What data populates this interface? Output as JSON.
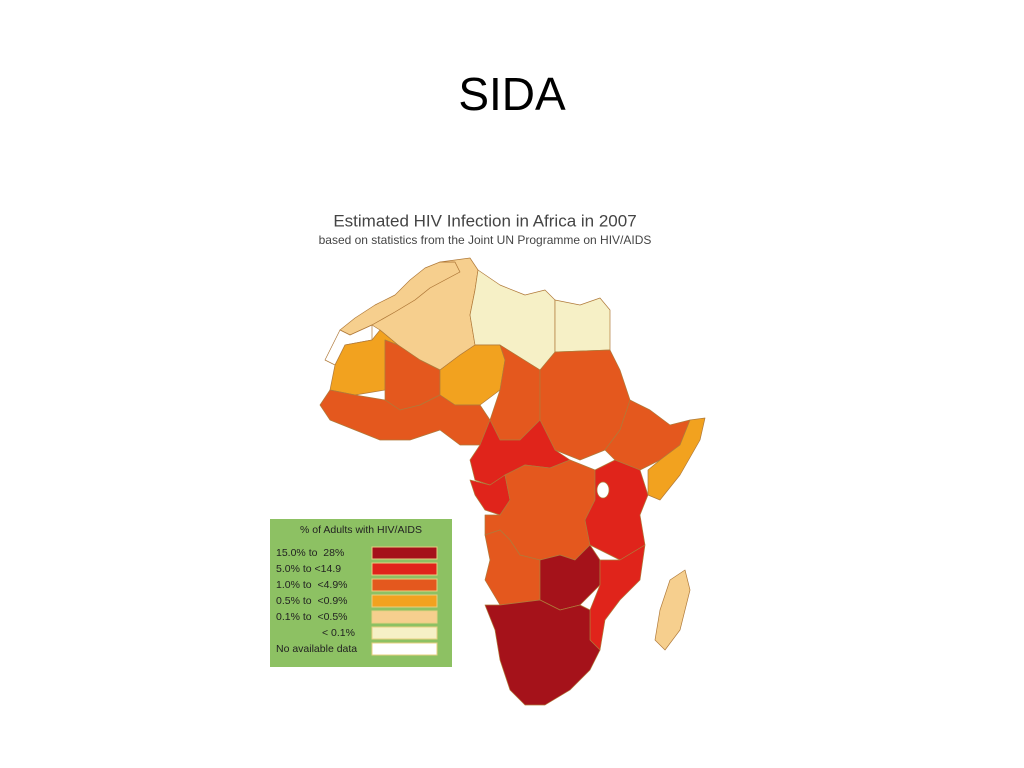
{
  "slide_title": "SIDA",
  "map": {
    "title": "Estimated HIV Infection in Africa in 2007",
    "subtitle": "based on statistics from the Joint UN Programme on HIV/AIDS",
    "legend": {
      "title": "% of Adults with HIV/AIDS",
      "items": [
        {
          "label": "15.0% to  28%",
          "color": "#a5121a"
        },
        {
          "label": "5.0% to <14.9",
          "color": "#e0241b"
        },
        {
          "label": "1.0% to  <4.9%",
          "color": "#e4581e"
        },
        {
          "label": "0.5% to  <0.9%",
          "color": "#f2a21f"
        },
        {
          "label": "0.1% to  <0.5%",
          "color": "#f6cf8e"
        },
        {
          "label": "< 0.1%",
          "color": "#f6f0c6"
        },
        {
          "label": "No available data",
          "color": "#ffffff"
        }
      ]
    }
  }
}
